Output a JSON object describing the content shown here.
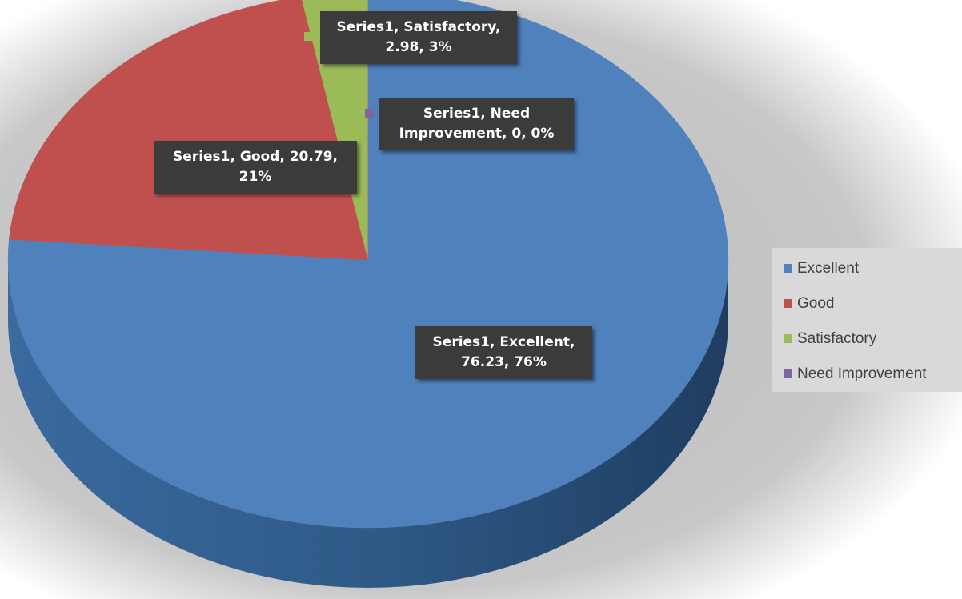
{
  "chart_data": {
    "type": "pie",
    "series_name": "Series1",
    "categories": [
      "Excellent",
      "Good",
      "Satisfactory",
      "Need Improvement"
    ],
    "values": [
      76.23,
      20.79,
      2.98,
      0
    ],
    "percent_labels": [
      "76%",
      "21%",
      "3%",
      "0%"
    ],
    "colors": [
      "#4f81bd",
      "#c0504d",
      "#9bbb59",
      "#8064a2"
    ],
    "data_labels": [
      "Series1, Excellent, 76.23, 76%",
      "Series1, Good, 20.79, 21%",
      "Series1, Satisfactory, 2.98, 3%",
      "Series1, Need Improvement, 0, 0%"
    ],
    "legend_position": "right",
    "three_d": true
  },
  "legend": {
    "items": [
      "Excellent",
      "Good",
      "Satisfactory",
      "Need Improvement"
    ]
  }
}
